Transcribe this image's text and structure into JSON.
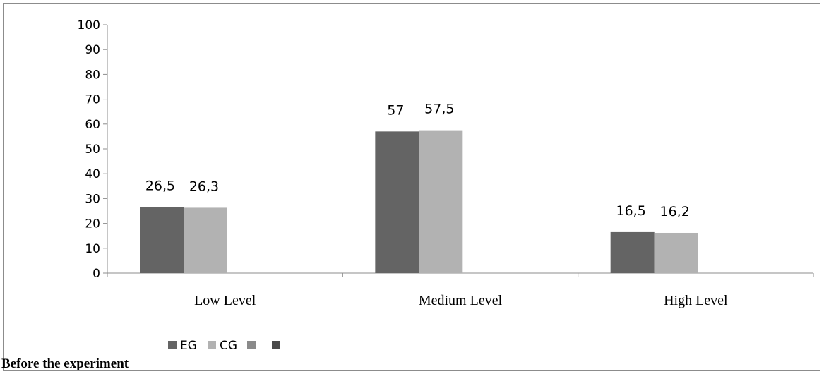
{
  "caption": "Before the experiment",
  "chart_data": {
    "type": "bar",
    "categories": [
      "Low Level",
      "Medium Level",
      "High Level"
    ],
    "series": [
      {
        "name": "EG",
        "values": [
          26.5,
          57,
          16.5
        ],
        "labels": [
          "26,5",
          "57",
          "16,5"
        ],
        "color": "#646464"
      },
      {
        "name": "CG",
        "values": [
          26.3,
          57.5,
          16.2
        ],
        "labels": [
          "26,3",
          "57,5",
          "16,2"
        ],
        "color": "#b2b2b2"
      }
    ],
    "legend_extra_colors": [
      "#8a8a8a",
      "#4a4a4a"
    ],
    "yticks": [
      "0",
      "10",
      "20",
      "30",
      "40",
      "50",
      "60",
      "70",
      "80",
      "90",
      "100"
    ],
    "ylim": [
      0,
      100
    ],
    "legend_position": "bottom-left",
    "grid": false
  }
}
